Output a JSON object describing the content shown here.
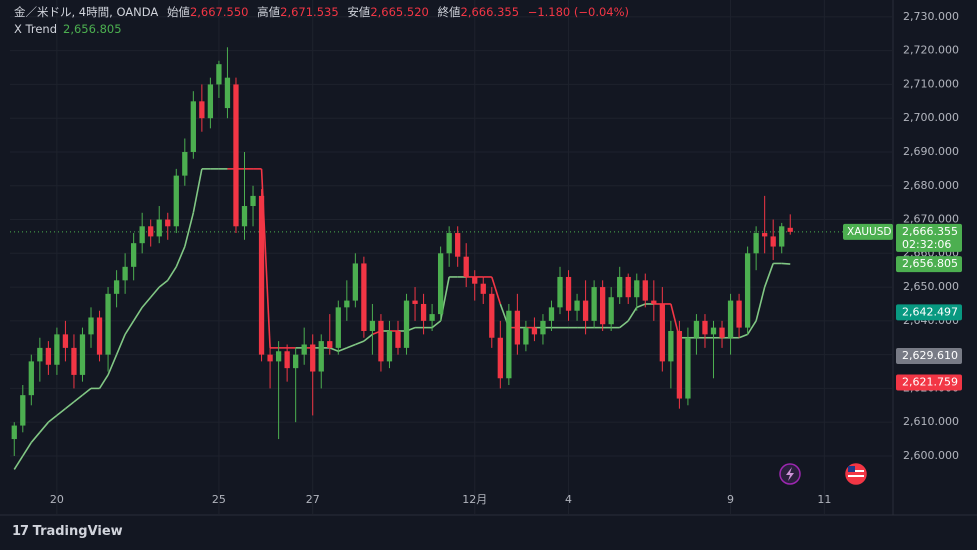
{
  "header": {
    "symbol_line": "金／米ドル, 4時間, OANDA",
    "open_label": "始値",
    "open": "2,667.550",
    "high_label": "高値",
    "high": "2,671.535",
    "low_label": "安値",
    "low": "2,665.520",
    "close_label": "終値",
    "close": "2,666.355",
    "change": "−1.180 (−0.04%)",
    "indicator_name": "X Trend",
    "indicator_value": "2,656.805"
  },
  "brand": "TradingView",
  "chart_data": {
    "type": "candlestick",
    "x": [
      0,
      1,
      2,
      3,
      4,
      5,
      6,
      7,
      8,
      9,
      10,
      11,
      12,
      13,
      14,
      15,
      16,
      17,
      18,
      19,
      20,
      21,
      22,
      23,
      24,
      25,
      26,
      27,
      28,
      29,
      30,
      31,
      32,
      33,
      34,
      35,
      36,
      37,
      38,
      39,
      40,
      41,
      42,
      43,
      44,
      45,
      46,
      47,
      48,
      49,
      50,
      51,
      52,
      53,
      54,
      55,
      56,
      57,
      58,
      59,
      60,
      61,
      62,
      63,
      64,
      65,
      66,
      67,
      68,
      69,
      70,
      71,
      72,
      73,
      74,
      75,
      76,
      77,
      78,
      79,
      80,
      81,
      82,
      83,
      84,
      85,
      86,
      87,
      88,
      89,
      90,
      91
    ],
    "open": [
      2605,
      2609,
      2618,
      2628,
      2632,
      2627,
      2636,
      2632,
      2624,
      2636,
      2641,
      2630,
      2648,
      2652,
      2656,
      2663,
      2668,
      2665,
      2670,
      2668,
      2683,
      2690,
      2705,
      2700,
      2710,
      2703,
      2710,
      2668,
      2674,
      2677,
      2630,
      2628,
      2631,
      2626,
      2630,
      2633,
      2625,
      2634,
      2632,
      2644,
      2646,
      2657,
      2637,
      2640,
      2628,
      2637,
      2632,
      2646,
      2645,
      2640,
      2642,
      2660,
      2666,
      2659,
      2653,
      2651,
      2648,
      2635,
      2623,
      2643,
      2633,
      2638,
      2636,
      2640,
      2644,
      2653,
      2643,
      2646,
      2640,
      2650,
      2639,
      2647,
      2653,
      2647,
      2652,
      2646,
      2645,
      2628,
      2637,
      2617,
      2635,
      2640,
      2636,
      2638,
      2635,
      2646,
      2638,
      2660,
      2666,
      2665,
      2662,
      2667.55
    ],
    "high": [
      2610,
      2621,
      2630,
      2635,
      2634,
      2638,
      2640,
      2636,
      2638,
      2644,
      2643,
      2650,
      2655,
      2660,
      2666,
      2672,
      2670,
      2674,
      2672,
      2685,
      2694,
      2708,
      2710,
      2712,
      2717,
      2721,
      2712,
      2690,
      2680,
      2679,
      2633,
      2634,
      2633,
      2632,
      2638,
      2636,
      2636,
      2642,
      2646,
      2652,
      2660,
      2659,
      2645,
      2642,
      2640,
      2640,
      2648,
      2650,
      2648,
      2645,
      2662,
      2668,
      2668,
      2663,
      2655,
      2653,
      2650,
      2640,
      2645,
      2648,
      2640,
      2641,
      2642,
      2646,
      2656,
      2655,
      2648,
      2652,
      2652,
      2652,
      2650,
      2656,
      2654,
      2654,
      2654,
      2652,
      2650,
      2640,
      2640,
      2638,
      2642,
      2642,
      2640,
      2640,
      2648,
      2648,
      2662,
      2668,
      2677,
      2670,
      2669,
      2671.535
    ],
    "low": [
      2600,
      2607,
      2615,
      2622,
      2624,
      2624,
      2628,
      2620,
      2622,
      2632,
      2628,
      2625,
      2644,
      2648,
      2652,
      2660,
      2662,
      2663,
      2664,
      2666,
      2680,
      2688,
      2696,
      2697,
      2706,
      2700,
      2666,
      2664,
      2668,
      2628,
      2620,
      2605,
      2622,
      2610,
      2627,
      2612,
      2620,
      2630,
      2630,
      2640,
      2644,
      2635,
      2630,
      2625,
      2626,
      2630,
      2630,
      2640,
      2636,
      2637,
      2640,
      2656,
      2656,
      2650,
      2646,
      2645,
      2632,
      2620,
      2621,
      2630,
      2631,
      2634,
      2633,
      2637,
      2642,
      2640,
      2640,
      2636,
      2638,
      2637,
      2637,
      2645,
      2645,
      2643,
      2644,
      2640,
      2625,
      2620,
      2614,
      2615,
      2630,
      2632,
      2623,
      2632,
      2630,
      2635,
      2636,
      2655,
      2660,
      2658,
      2660,
      2665.52
    ],
    "close": [
      2609,
      2618,
      2628,
      2632,
      2627,
      2636,
      2632,
      2624,
      2636,
      2641,
      2630,
      2648,
      2652,
      2656,
      2663,
      2668,
      2665,
      2670,
      2668,
      2683,
      2690,
      2705,
      2700,
      2710,
      2716,
      2712,
      2668,
      2674,
      2677,
      2630,
      2628,
      2631,
      2626,
      2630,
      2633,
      2625,
      2634,
      2632,
      2644,
      2646,
      2657,
      2637,
      2640,
      2628,
      2637,
      2632,
      2646,
      2645,
      2640,
      2642,
      2660,
      2666,
      2659,
      2653,
      2651,
      2648,
      2635,
      2623,
      2643,
      2633,
      2638,
      2636,
      2640,
      2644,
      2653,
      2643,
      2646,
      2640,
      2650,
      2639,
      2647,
      2653,
      2647,
      2652,
      2646,
      2645,
      2628,
      2637,
      2617,
      2635,
      2640,
      2636,
      2638,
      2635,
      2646,
      2638,
      2660,
      2666,
      2665,
      2662,
      2668,
      2666.355
    ],
    "up_color": "#4caf50",
    "down_color": "#f23645",
    "series": [
      {
        "name": "X Trend",
        "up_color": "#81c784",
        "down_color": "#f23645",
        "values": [
          2596,
          2600,
          2604,
          2607,
          2610,
          2612,
          2614,
          2616,
          2618,
          2620,
          2620,
          2624,
          2630,
          2636,
          2640,
          2644,
          2647,
          2650,
          2652,
          2656,
          2662,
          2672,
          2685,
          2685,
          2685,
          2685,
          2685,
          2685,
          2685,
          2685,
          2632,
          2632,
          2632,
          2632,
          2632,
          2632,
          2632,
          2632,
          2631,
          2632,
          2633,
          2634,
          2636,
          2637,
          2637,
          2637,
          2637,
          2638,
          2638,
          2638,
          2640,
          2653,
          2653,
          2653,
          2653,
          2653,
          2653,
          2645,
          2638,
          2638,
          2638,
          2638,
          2638,
          2638,
          2638,
          2638,
          2638,
          2638,
          2638,
          2638,
          2638,
          2638,
          2640,
          2644,
          2645,
          2645,
          2645,
          2645,
          2635,
          2635,
          2635,
          2635,
          2635,
          2635,
          2635,
          2635,
          2636,
          2640,
          2650,
          2657,
          2657,
          2656.805
        ]
      }
    ],
    "xlim": [
      -0.5,
      103.05
    ],
    "xticks": [
      {
        "value": 5,
        "label": "20"
      },
      {
        "value": 24,
        "label": "25"
      },
      {
        "value": 35,
        "label": "27"
      },
      {
        "value": 54,
        "label": "12月"
      },
      {
        "value": 65,
        "label": "4"
      },
      {
        "value": 84,
        "label": "9"
      },
      {
        "value": 95,
        "label": "11"
      }
    ],
    "ylim": [
      2591.4,
      2735
    ],
    "yticks": [
      {
        "value": 2600,
        "label": "2,600.000"
      },
      {
        "value": 2610,
        "label": "2,610.000"
      },
      {
        "value": 2620,
        "label": "2,620.000"
      },
      {
        "value": 2630,
        "label": "2,630.000"
      },
      {
        "value": 2640,
        "label": "2,640.000"
      },
      {
        "value": 2650,
        "label": "2,650.000"
      },
      {
        "value": 2660,
        "label": "2,660.000"
      },
      {
        "value": 2670,
        "label": "2,670.000"
      },
      {
        "value": 2680,
        "label": "2,680.000"
      },
      {
        "value": 2690,
        "label": "2,690.000"
      },
      {
        "value": 2700,
        "label": "2,700.000"
      },
      {
        "value": 2710,
        "label": "2,710.000"
      },
      {
        "value": 2720,
        "label": "2,720.000"
      },
      {
        "value": 2730,
        "label": "2,730.000"
      }
    ],
    "grid": true,
    "last_price": {
      "symbol": "XAUUSD",
      "value": 2666.355,
      "label": "2,666.355",
      "countdown": "02:32:06",
      "color": "#4caf50"
    },
    "price_markers": [
      {
        "value": 2656.805,
        "label": "2,656.805",
        "color": "#4caf50"
      },
      {
        "value": 2642.497,
        "label": "2,642.497",
        "color": "#089981"
      },
      {
        "value": 2629.61,
        "label": "2,629.610",
        "color": "#787b86"
      },
      {
        "value": 2621.759,
        "label": "2,621.759",
        "color": "#f23645"
      }
    ]
  }
}
